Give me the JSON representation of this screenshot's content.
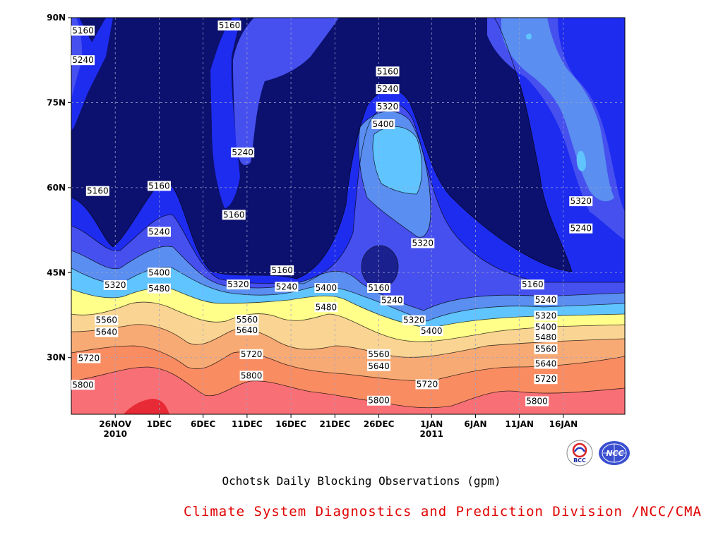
{
  "chart_data": {
    "type": "contour",
    "title": "Ochotsk Daily Blocking Observations (gpm)",
    "credit": "Climate System Diagnostics and Prediction Division /NCC/CMA",
    "x_tick_labels": [
      {
        "day": 5,
        "label": "26NOV",
        "year": "2010"
      },
      {
        "day": 10,
        "label": "1DEC"
      },
      {
        "day": 15,
        "label": "6DEC"
      },
      {
        "day": 20,
        "label": "11DEC"
      },
      {
        "day": 25,
        "label": "16DEC"
      },
      {
        "day": 30,
        "label": "21DEC"
      },
      {
        "day": 35,
        "label": "26DEC"
      },
      {
        "day": 41,
        "label": "1JAN",
        "year": "2011"
      },
      {
        "day": 46,
        "label": "6JAN"
      },
      {
        "day": 51,
        "label": "11JAN"
      },
      {
        "day": 56,
        "label": "16JAN"
      }
    ],
    "xlim": [
      0,
      63
    ],
    "y_tick_labels": [
      {
        "lat": 90,
        "label": "90N"
      },
      {
        "lat": 75,
        "label": "75N"
      },
      {
        "lat": 60,
        "label": "60N"
      },
      {
        "lat": 45,
        "label": "45N"
      },
      {
        "lat": 30,
        "label": "30N"
      }
    ],
    "ylim": [
      20,
      90
    ],
    "grid": true,
    "contour_levels": [
      5160,
      5240,
      5320,
      5400,
      5480,
      5560,
      5640,
      5720,
      5800,
      5880
    ],
    "contour_labels": [
      {
        "day": 1,
        "lat": 87.7,
        "value": "5160"
      },
      {
        "day": 1,
        "lat": 82.5,
        "value": "5240"
      },
      {
        "day": 3,
        "lat": 59.4,
        "value": "5160"
      },
      {
        "day": 10,
        "lat": 60.3,
        "value": "5160"
      },
      {
        "day": 10,
        "lat": 52.2,
        "value": "5240"
      },
      {
        "day": 10,
        "lat": 45,
        "value": "5400"
      },
      {
        "day": 10,
        "lat": 42.2,
        "value": "5480"
      },
      {
        "day": 5,
        "lat": 42.8,
        "value": "5320"
      },
      {
        "day": 4,
        "lat": 36.6,
        "value": "5560"
      },
      {
        "day": 4,
        "lat": 34.5,
        "value": "5640"
      },
      {
        "day": 2,
        "lat": 29.9,
        "value": "5720"
      },
      {
        "day": 1,
        "lat": 25.2,
        "value": "5800"
      },
      {
        "day": 18,
        "lat": 88.6,
        "value": "5160"
      },
      {
        "day": 19.5,
        "lat": 66.2,
        "value": "5240"
      },
      {
        "day": 18.5,
        "lat": 55.2,
        "value": "5160"
      },
      {
        "day": 19,
        "lat": 42.9,
        "value": "5320"
      },
      {
        "day": 24,
        "lat": 45.4,
        "value": "5160"
      },
      {
        "day": 24.5,
        "lat": 42.5,
        "value": "5240"
      },
      {
        "day": 20,
        "lat": 36.7,
        "value": "5560"
      },
      {
        "day": 20,
        "lat": 34.8,
        "value": "5640"
      },
      {
        "day": 20.5,
        "lat": 30.6,
        "value": "5720"
      },
      {
        "day": 20.5,
        "lat": 26.8,
        "value": "5800"
      },
      {
        "day": 29,
        "lat": 42.3,
        "value": "5400"
      },
      {
        "day": 29,
        "lat": 38.9,
        "value": "5480"
      },
      {
        "day": 35,
        "lat": 42.3,
        "value": "5160"
      },
      {
        "day": 36.5,
        "lat": 40.1,
        "value": "5240"
      },
      {
        "day": 39,
        "lat": 36.6,
        "value": "5320"
      },
      {
        "day": 41,
        "lat": 34.7,
        "value": "5400"
      },
      {
        "day": 35,
        "lat": 30.6,
        "value": "5560"
      },
      {
        "day": 35,
        "lat": 28.5,
        "value": "5640"
      },
      {
        "day": 40.5,
        "lat": 25.3,
        "value": "5720"
      },
      {
        "day": 35,
        "lat": 22.4,
        "value": "5800"
      },
      {
        "day": 36,
        "lat": 80.5,
        "value": "5160"
      },
      {
        "day": 36,
        "lat": 77.4,
        "value": "5240"
      },
      {
        "day": 36,
        "lat": 74.3,
        "value": "5320"
      },
      {
        "day": 35.5,
        "lat": 71.2,
        "value": "5400"
      },
      {
        "day": 40,
        "lat": 50.2,
        "value": "5320"
      },
      {
        "day": 52.5,
        "lat": 42.9,
        "value": "5160"
      },
      {
        "day": 54,
        "lat": 40.2,
        "value": "5240"
      },
      {
        "day": 54,
        "lat": 37.4,
        "value": "5320"
      },
      {
        "day": 54,
        "lat": 35.4,
        "value": "5400"
      },
      {
        "day": 54,
        "lat": 33.6,
        "value": "5480"
      },
      {
        "day": 54,
        "lat": 31.5,
        "value": "5560"
      },
      {
        "day": 54,
        "lat": 28.9,
        "value": "5640"
      },
      {
        "day": 54,
        "lat": 26.2,
        "value": "5720"
      },
      {
        "day": 53,
        "lat": 22.3,
        "value": "5800"
      },
      {
        "day": 58,
        "lat": 57.6,
        "value": "5320"
      },
      {
        "day": 58,
        "lat": 52.8,
        "value": "5240"
      }
    ]
  },
  "colors": {
    "above_5880": "#e82a36",
    "5800_5880": "#f87076",
    "5720_5800": "#fa8c62",
    "5640_5720": "#f8aa74",
    "5560_5640": "#fad492",
    "5480_5560": "#ffff8a",
    "5400_5480": "#60c4ff",
    "5320_5400": "#5a8ef0",
    "5240_5320": "#4650ef",
    "5160_5240": "#1e2cf0",
    "below_5160": "#0c106e"
  },
  "logos": [
    {
      "name": "bcc-logo",
      "text": "BCC"
    },
    {
      "name": "ncc-logo",
      "text": "NCC"
    }
  ]
}
